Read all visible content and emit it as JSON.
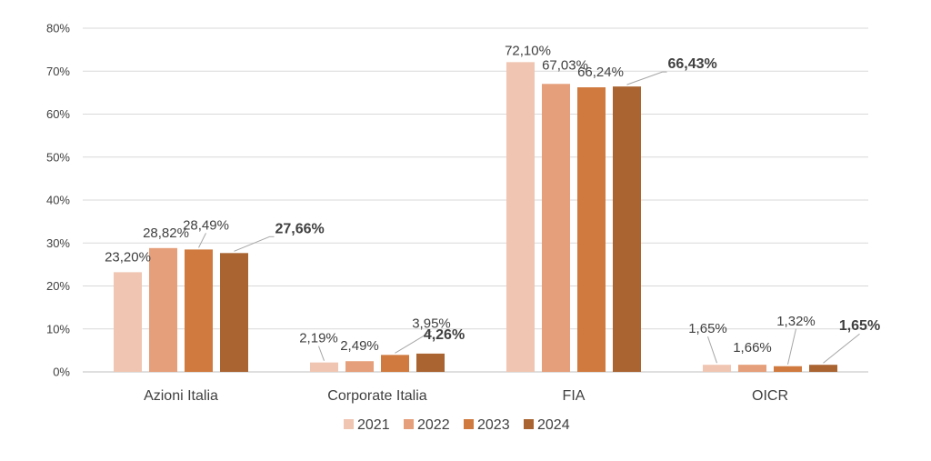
{
  "chart_data": {
    "type": "bar",
    "title": "",
    "xlabel": "",
    "ylabel": "",
    "ylim": [
      0,
      80
    ],
    "yticks": [
      "0%",
      "10%",
      "20%",
      "30%",
      "40%",
      "50%",
      "60%",
      "70%",
      "80%"
    ],
    "grid": true,
    "legend_position": "bottom",
    "categories": [
      "Azioni Italia",
      "Corporate Italia",
      "FIA",
      "OICR"
    ],
    "series": [
      {
        "name": "2021",
        "color": "#F0C5B2",
        "values": [
          23.2,
          2.19,
          72.1,
          1.65
        ],
        "labels": [
          "23,20%",
          "2,19%",
          "72,10%",
          "1,65%"
        ],
        "bold": false
      },
      {
        "name": "2022",
        "color": "#E59F7A",
        "values": [
          28.82,
          2.49,
          67.03,
          1.66
        ],
        "labels": [
          "28,82%",
          "2,49%",
          "67,03%",
          "1,66%"
        ],
        "bold": false
      },
      {
        "name": "2023",
        "color": "#D07A3F",
        "values": [
          28.49,
          3.95,
          66.24,
          1.32
        ],
        "labels": [
          "28,49%",
          "3,95%",
          "66,24%",
          "1,32%"
        ],
        "bold": false
      },
      {
        "name": "2024",
        "color": "#AA6432",
        "values": [
          27.66,
          4.26,
          66.43,
          1.65
        ],
        "labels": [
          "27,66%",
          "4,26%",
          "66,43%",
          "1,65%"
        ],
        "bold": true
      }
    ]
  }
}
